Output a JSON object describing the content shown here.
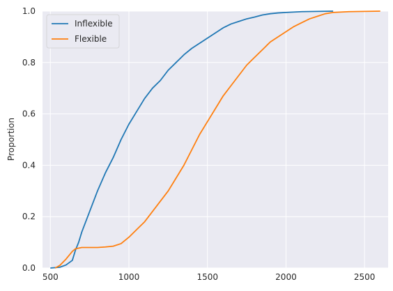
{
  "chart_data": {
    "type": "line",
    "ylabel": "Proportion",
    "xlabel": "",
    "xlim": [
      450,
      2650
    ],
    "ylim": [
      0,
      1.0
    ],
    "x_ticks": [
      500,
      1000,
      1500,
      2000,
      2500
    ],
    "y_ticks": [
      0.0,
      0.2,
      0.4,
      0.6,
      0.8,
      1.0
    ],
    "x_tick_labels": [
      "500",
      "1000",
      "1500",
      "2000",
      "2500"
    ],
    "y_tick_labels": [
      "0.0",
      "0.2",
      "0.4",
      "0.6",
      "0.8",
      "1.0"
    ],
    "grid": true,
    "legend_position": "top-left",
    "background": "#eaeaf2",
    "series": [
      {
        "name": "Inflexible",
        "color": "#1f77b4",
        "x": [
          500,
          560,
          600,
          640,
          660,
          680,
          700,
          750,
          800,
          850,
          900,
          950,
          1000,
          1050,
          1100,
          1150,
          1200,
          1250,
          1300,
          1350,
          1400,
          1450,
          1500,
          1550,
          1600,
          1650,
          1700,
          1750,
          1800,
          1850,
          1900,
          1950,
          2000,
          2100,
          2200,
          2300
        ],
        "y": [
          0.0,
          0.003,
          0.012,
          0.03,
          0.07,
          0.1,
          0.14,
          0.22,
          0.3,
          0.37,
          0.43,
          0.5,
          0.56,
          0.61,
          0.66,
          0.7,
          0.73,
          0.77,
          0.8,
          0.83,
          0.855,
          0.875,
          0.895,
          0.915,
          0.935,
          0.95,
          0.96,
          0.97,
          0.977,
          0.985,
          0.99,
          0.993,
          0.995,
          0.998,
          0.999,
          1.0
        ]
      },
      {
        "name": "Flexible",
        "color": "#ff7f0e",
        "x": [
          530,
          560,
          600,
          640,
          660,
          700,
          750,
          800,
          850,
          900,
          950,
          1000,
          1050,
          1100,
          1150,
          1200,
          1250,
          1300,
          1350,
          1400,
          1450,
          1500,
          1550,
          1600,
          1650,
          1700,
          1750,
          1800,
          1850,
          1900,
          1950,
          2000,
          2050,
          2100,
          2150,
          2200,
          2250,
          2300,
          2400,
          2500,
          2600
        ],
        "y": [
          0.0,
          0.01,
          0.035,
          0.065,
          0.075,
          0.08,
          0.08,
          0.08,
          0.082,
          0.085,
          0.095,
          0.12,
          0.15,
          0.18,
          0.22,
          0.26,
          0.3,
          0.35,
          0.4,
          0.46,
          0.52,
          0.57,
          0.62,
          0.67,
          0.71,
          0.75,
          0.79,
          0.82,
          0.85,
          0.88,
          0.9,
          0.92,
          0.94,
          0.955,
          0.97,
          0.98,
          0.99,
          0.995,
          0.998,
          0.999,
          1.0
        ]
      }
    ]
  }
}
